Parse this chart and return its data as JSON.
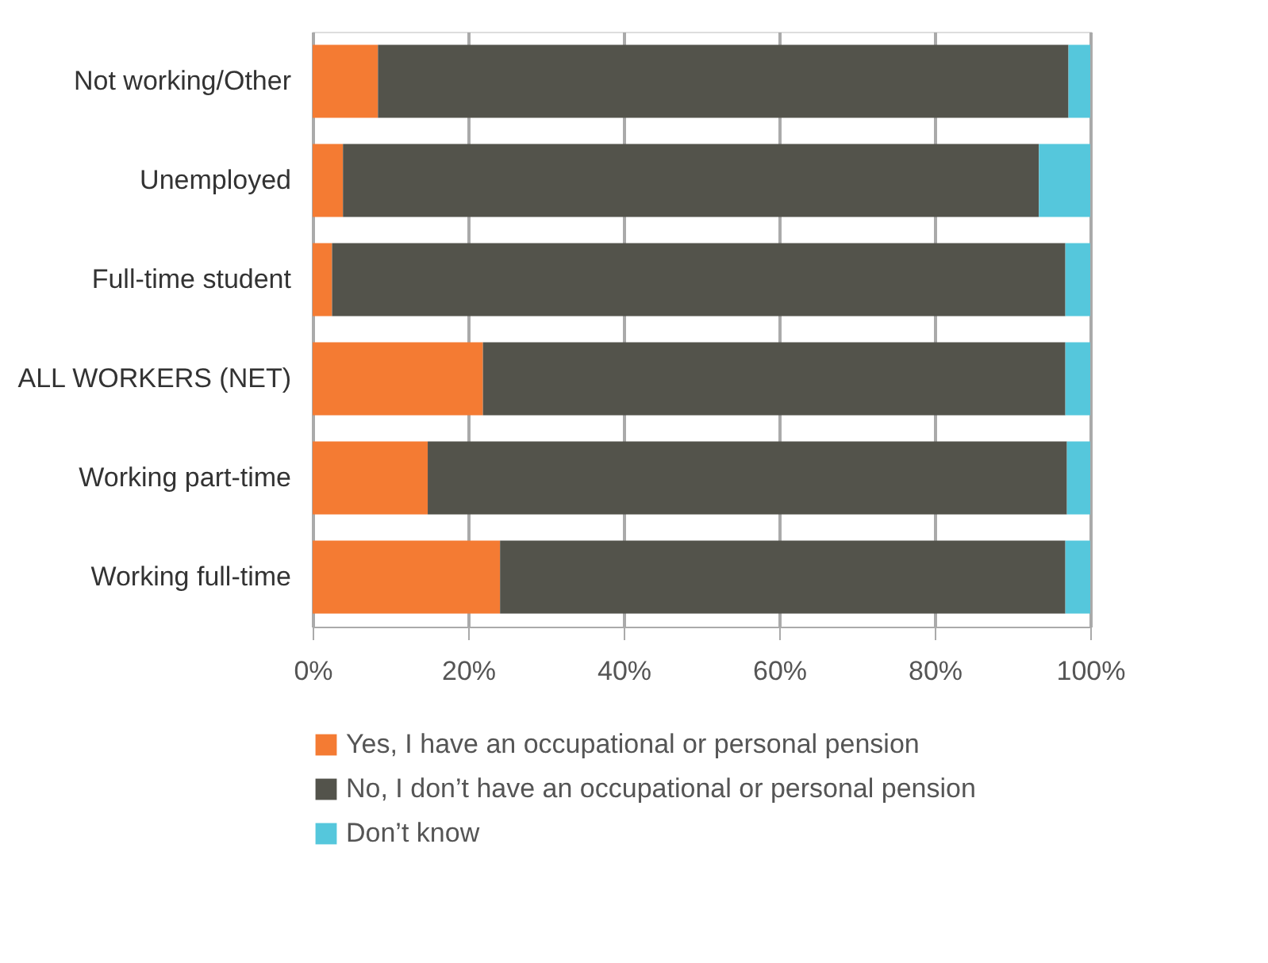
{
  "chart_data": {
    "type": "bar",
    "orientation": "horizontal",
    "stacked": true,
    "categories": [
      "Not working/Other",
      "Unemployed",
      "Full-time student",
      "ALL WORKERS (NET)",
      "Working part-time",
      "Working full-time"
    ],
    "series": [
      {
        "name": "Yes, I have an occupational or personal pension",
        "color": "#f47b33",
        "values": [
          8.4,
          3.9,
          2.5,
          21.9,
          14.8,
          24.1
        ]
      },
      {
        "name": "No, I don’t have an occupational or personal pension",
        "color": "#53534b",
        "values": [
          88.8,
          89.5,
          94.3,
          74.9,
          82.2,
          72.7
        ]
      },
      {
        "name": "Don’t know",
        "color": "#55c7dc",
        "values": [
          2.8,
          6.6,
          3.2,
          3.2,
          3.0,
          3.2
        ]
      }
    ],
    "xlim": [
      0,
      100
    ],
    "xticks": [
      {
        "value": 0,
        "label": "0%"
      },
      {
        "value": 20,
        "label": "20%"
      },
      {
        "value": 40,
        "label": "40%"
      },
      {
        "value": 60,
        "label": "60%"
      },
      {
        "value": 80,
        "label": "80%"
      },
      {
        "value": 100,
        "label": "100%"
      }
    ],
    "grid": "x",
    "legend": "bottom"
  }
}
